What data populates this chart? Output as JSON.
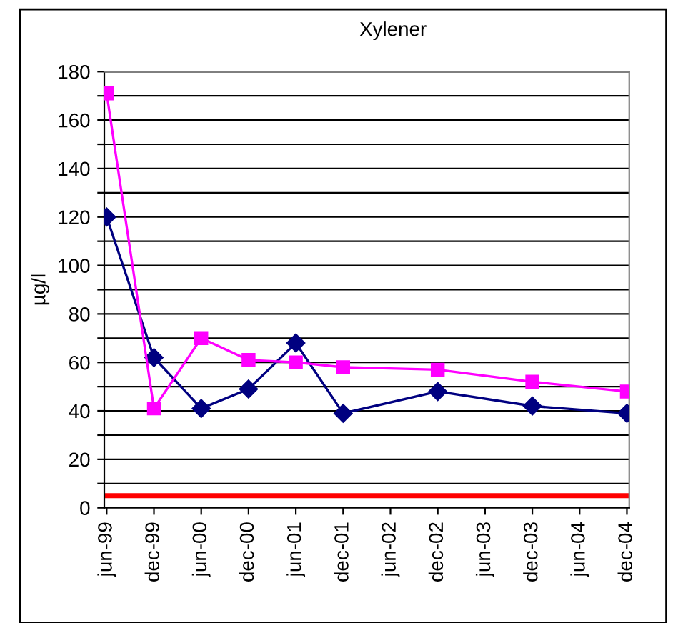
{
  "chart_data": {
    "type": "line",
    "title": "Xylener",
    "ylabel": "µg/l",
    "categories": [
      "jun-99",
      "dec-99",
      "jun-00",
      "dec-00",
      "jun-01",
      "dec-01",
      "jun-02",
      "dec-02",
      "jun-03",
      "dec-03",
      "jun-04",
      "dec-04"
    ],
    "series": [
      {
        "color": "#000080",
        "marker": "diamond",
        "values": [
          120,
          62,
          41,
          49,
          68,
          39,
          null,
          48,
          null,
          42,
          null,
          39
        ]
      },
      {
        "color": "#ff00ff",
        "marker": "square",
        "values": [
          171,
          41,
          70,
          61,
          60,
          58,
          null,
          57,
          null,
          52,
          null,
          48
        ]
      }
    ],
    "ylim": [
      0,
      180
    ],
    "yticks": [
      0,
      {
        "value": 10,
        "label": null
      },
      20,
      {
        "value": 30,
        "label": null
      },
      40,
      {
        "value": 50,
        "label": null
      },
      60,
      {
        "value": 70,
        "label": null
      },
      80,
      {
        "value": 90,
        "label": null
      },
      100,
      {
        "value": 110,
        "label": null
      },
      120,
      {
        "value": 130,
        "label": null
      },
      140,
      {
        "value": 150,
        "label": null
      },
      160,
      {
        "value": 170,
        "label": null
      },
      180
    ],
    "grid": "y",
    "ref_lines": [
      {
        "axis": "y",
        "value": 5,
        "color": "#ff0000"
      }
    ]
  }
}
